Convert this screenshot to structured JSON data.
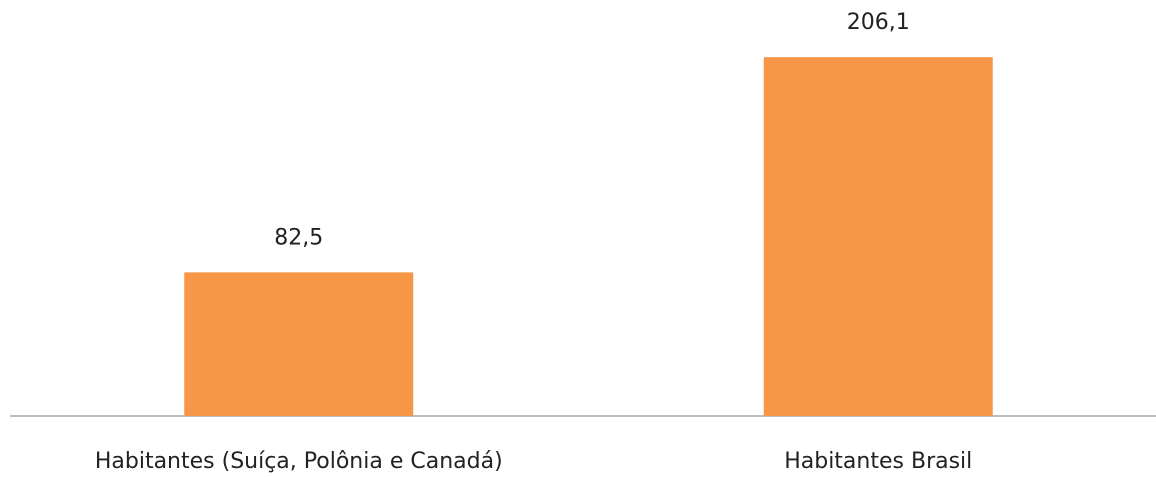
{
  "chart_data": {
    "type": "bar",
    "categories": [
      "Habitantes (Suíça, Polônia e Canadá)",
      "Habitantes Brasil"
    ],
    "values": [
      82.5,
      206.1
    ],
    "value_labels": [
      "82,5",
      "206,1"
    ],
    "color": "#f79646",
    "ylim": [
      0,
      220
    ]
  }
}
